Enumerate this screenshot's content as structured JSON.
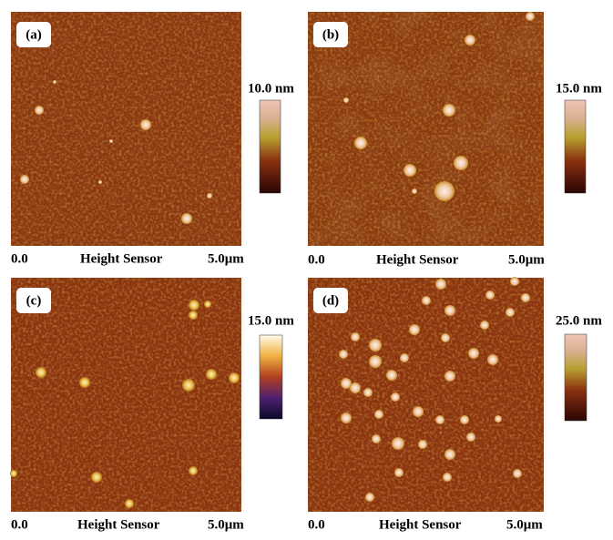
{
  "panels": [
    {
      "label": "(a)",
      "scale_max": "10.0 nm",
      "axis_start": "0.0",
      "axis_title": "Height Sensor",
      "axis_end": "5.0μm"
    },
    {
      "label": "(b)",
      "scale_max": "15.0 nm",
      "axis_start": "0.0",
      "axis_title": "Height Sensor",
      "axis_end": "5.0μm"
    },
    {
      "label": "(c)",
      "scale_max": "15.0 nm",
      "axis_start": "0.0",
      "axis_title": "Height Sensor",
      "axis_end": "5.0μm"
    },
    {
      "label": "(d)",
      "scale_max": "25.0 nm",
      "axis_start": "0.0",
      "axis_title": "Height Sensor",
      "axis_end": "5.0μm"
    }
  ]
}
